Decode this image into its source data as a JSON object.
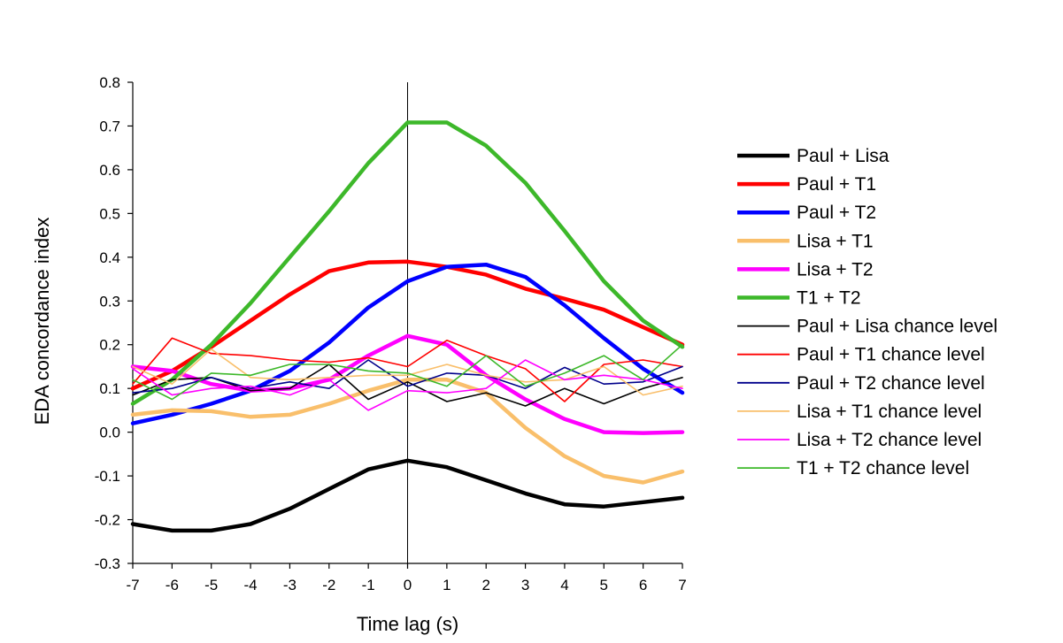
{
  "chart_data": {
    "type": "line",
    "title": "",
    "xlabel": "Time lag (s)",
    "ylabel": "EDA concordance index",
    "xlim": [
      -7,
      7
    ],
    "ylim": [
      -0.3,
      0.8
    ],
    "x": [
      -7,
      -6,
      -5,
      -4,
      -3,
      -2,
      -1,
      0,
      1,
      2,
      3,
      4,
      5,
      6,
      7
    ],
    "x_ticks": [
      -7,
      -6,
      -5,
      -4,
      -3,
      -2,
      -1,
      0,
      1,
      2,
      3,
      4,
      5,
      6,
      7
    ],
    "x_tick_labels": [
      "-7",
      "-6",
      "-5",
      "-4",
      "-3",
      "-2",
      "-1",
      "0",
      "1",
      "2",
      "3",
      "4",
      "5",
      "6",
      "7"
    ],
    "y_ticks": [
      0.8,
      0.7,
      0.6,
      0.5,
      0.4,
      0.3,
      0.2,
      0.1,
      0.0,
      -0.1,
      -0.2,
      -0.3
    ],
    "y_tick_labels": [
      "0.8",
      "0.7",
      "0.6",
      "0.5",
      "0.4",
      "0.3",
      "0.2",
      "0.1",
      "0.0",
      "-0.1",
      "-0.2",
      "-0.3"
    ],
    "grid": false,
    "vertical_reference_line_x": 0,
    "legend_position": "right",
    "series": [
      {
        "name": "Paul + Lisa",
        "color": "#000000",
        "style": "thick",
        "values": [
          -0.21,
          -0.225,
          -0.225,
          -0.21,
          -0.175,
          -0.13,
          -0.085,
          -0.065,
          -0.08,
          -0.11,
          -0.14,
          -0.165,
          -0.17,
          -0.16,
          -0.15
        ]
      },
      {
        "name": "Paul + T1",
        "color": "#ff0000",
        "style": "thick",
        "values": [
          0.1,
          0.14,
          0.195,
          0.255,
          0.315,
          0.368,
          0.388,
          0.39,
          0.378,
          0.36,
          0.328,
          0.305,
          0.28,
          0.24,
          0.2
        ]
      },
      {
        "name": "Paul + T2",
        "color": "#0000ff",
        "style": "thick",
        "values": [
          0.02,
          0.04,
          0.065,
          0.095,
          0.14,
          0.205,
          0.285,
          0.345,
          0.378,
          0.383,
          0.355,
          0.29,
          0.215,
          0.145,
          0.09
        ]
      },
      {
        "name": "Lisa + T1",
        "color": "#f9bf6b",
        "style": "thick",
        "values": [
          0.04,
          0.05,
          0.048,
          0.035,
          0.04,
          0.065,
          0.095,
          0.12,
          0.12,
          0.09,
          0.01,
          -0.055,
          -0.1,
          -0.115,
          -0.09
        ]
      },
      {
        "name": "Lisa + T2",
        "color": "#ff00ff",
        "style": "thick",
        "values": [
          0.15,
          0.14,
          0.11,
          0.095,
          0.1,
          0.12,
          0.175,
          0.22,
          0.2,
          0.13,
          0.075,
          0.03,
          0.0,
          -0.002,
          0.0
        ]
      },
      {
        "name": "T1 + T2",
        "color": "#3db82a",
        "style": "thick",
        "values": [
          0.065,
          0.12,
          0.2,
          0.295,
          0.4,
          0.505,
          0.615,
          0.708,
          0.708,
          0.655,
          0.57,
          0.46,
          0.345,
          0.255,
          0.195
        ]
      },
      {
        "name": "Paul + Lisa chance level",
        "color": "#000000",
        "style": "thin",
        "values": [
          0.085,
          0.12,
          0.125,
          0.095,
          0.1,
          0.155,
          0.075,
          0.115,
          0.07,
          0.09,
          0.06,
          0.1,
          0.065,
          0.1,
          0.125
        ]
      },
      {
        "name": "Paul + T1 chance level",
        "color": "#ff0000",
        "style": "thin",
        "values": [
          0.11,
          0.215,
          0.18,
          0.175,
          0.165,
          0.16,
          0.17,
          0.15,
          0.21,
          0.175,
          0.145,
          0.07,
          0.155,
          0.165,
          0.15
        ]
      },
      {
        "name": "Paul + T2 chance level",
        "color": "#00008b",
        "style": "thin",
        "values": [
          0.09,
          0.1,
          0.125,
          0.1,
          0.115,
          0.1,
          0.165,
          0.105,
          0.135,
          0.13,
          0.1,
          0.148,
          0.11,
          0.115,
          0.15
        ]
      },
      {
        "name": "Lisa + T1 chance level",
        "color": "#f9bf6b",
        "style": "thin",
        "values": [
          0.15,
          0.11,
          0.19,
          0.125,
          0.12,
          0.125,
          0.13,
          0.13,
          0.155,
          0.13,
          0.115,
          0.12,
          0.15,
          0.085,
          0.105
        ]
      },
      {
        "name": "Lisa + T2 chance level",
        "color": "#ff00ff",
        "style": "thin",
        "values": [
          0.145,
          0.085,
          0.1,
          0.105,
          0.085,
          0.12,
          0.05,
          0.095,
          0.09,
          0.1,
          0.165,
          0.12,
          0.13,
          0.12,
          0.1
        ]
      },
      {
        "name": "T1 + T2 chance level",
        "color": "#3db82a",
        "style": "thin",
        "values": [
          0.12,
          0.075,
          0.135,
          0.13,
          0.155,
          0.155,
          0.14,
          0.135,
          0.105,
          0.175,
          0.105,
          0.135,
          0.175,
          0.12,
          0.2
        ]
      }
    ]
  }
}
